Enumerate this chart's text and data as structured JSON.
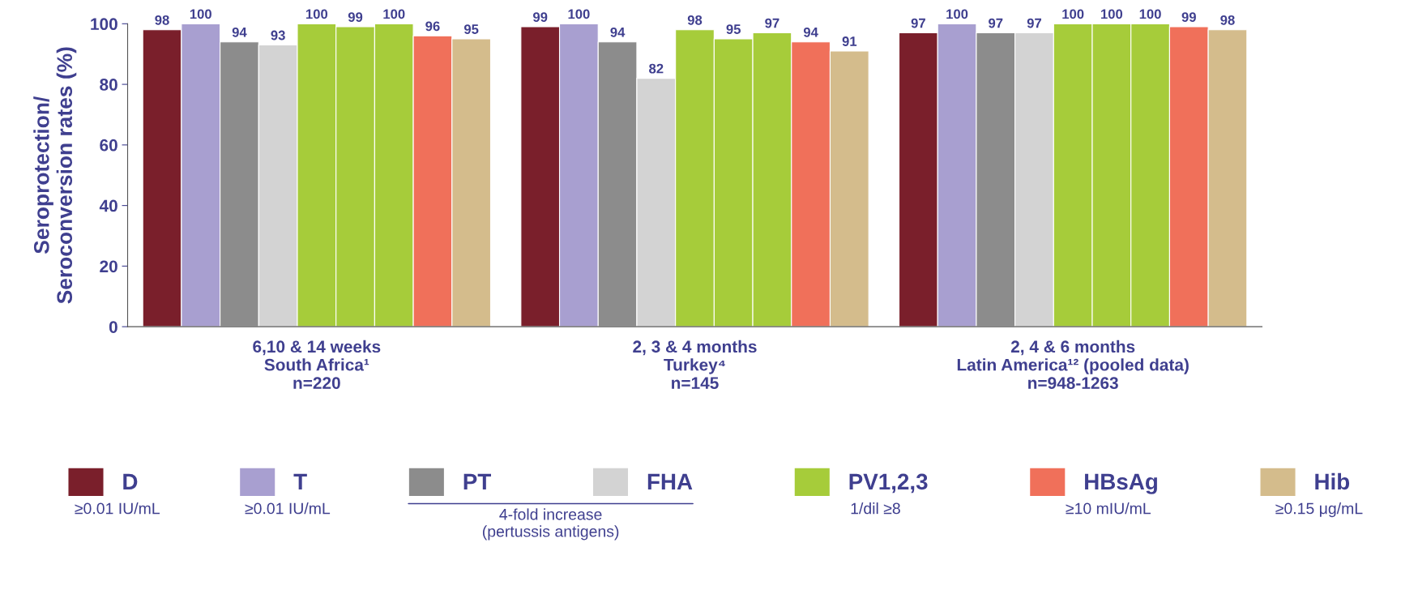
{
  "chart_data": {
    "type": "bar",
    "ylabel": "Seroprotection/\nSeroconversion rates (%)",
    "categories": [
      "6,10 & 14 weeks\nSouth Africa¹\nn=220",
      "2, 3 & 4 months\nTurkey⁴\nn=145",
      "2, 4 & 6 months\nLatin America¹² (pooled data)\nn=948-1263"
    ],
    "series": [
      {
        "name": "D",
        "color": "#7a1f2b",
        "values": [
          98,
          99,
          97
        ]
      },
      {
        "name": "T",
        "color": "#a89fd0",
        "values": [
          100,
          100,
          100
        ]
      },
      {
        "name": "PT",
        "color": "#8c8c8c",
        "values": [
          94,
          94,
          97
        ]
      },
      {
        "name": "FHA",
        "color": "#d3d3d3",
        "values": [
          93,
          82,
          97
        ]
      },
      {
        "name": "PV1,2,3",
        "color": "#a6cc3a",
        "values": [
          100,
          98,
          100
        ]
      },
      {
        "color": "#a6cc3a",
        "values": [
          99,
          95,
          100
        ]
      },
      {
        "color": "#a6cc3a",
        "values": [
          100,
          97,
          100
        ]
      },
      {
        "name": "HBsAg",
        "color": "#f0705a",
        "values": [
          96,
          94,
          99
        ]
      },
      {
        "name": "Hib",
        "color": "#d4bc8c",
        "values": [
          95,
          91,
          98
        ]
      }
    ],
    "ylim": [
      0,
      100
    ],
    "yticks": [
      0,
      20,
      40,
      60,
      80,
      100
    ],
    "data_labels": true,
    "grid": false,
    "legend": "bottom",
    "annotations": [
      "≥0.01 IU/mL",
      "≥0.01 IU/mL",
      "4-fold increase\n(pertussis antigens)",
      "1/dil ≥8",
      "≥10 mIU/mL",
      "≥0.15 μg/mL"
    ]
  }
}
